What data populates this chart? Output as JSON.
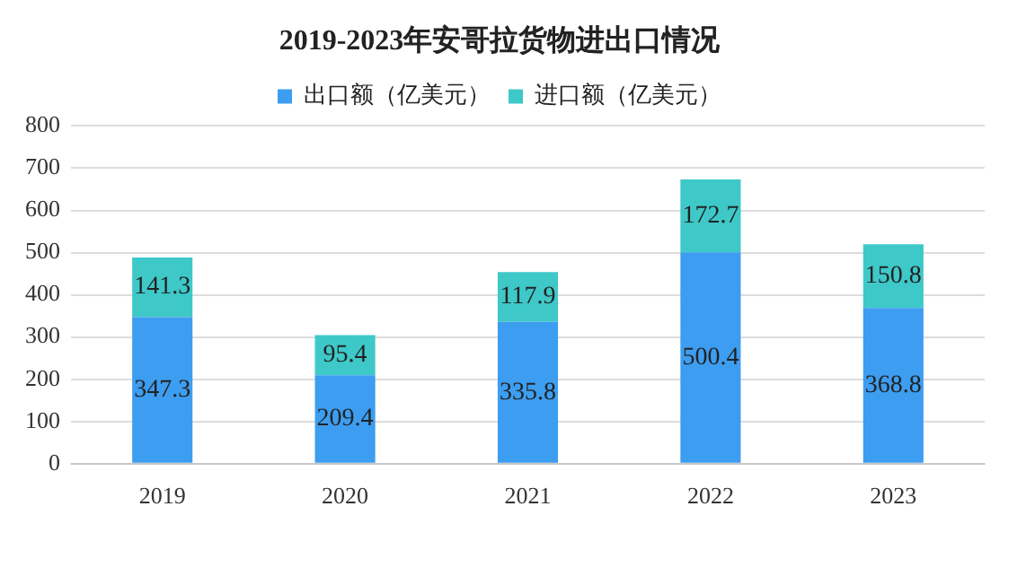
{
  "chart_data": {
    "type": "bar",
    "title": "2019-2023年安哥拉货物进出口情况",
    "categories": [
      "2019",
      "2020",
      "2021",
      "2022",
      "2023"
    ],
    "series": [
      {
        "name": "出口额（亿美元）",
        "color": "#3d9df0",
        "values": [
          347.3,
          209.4,
          335.8,
          500.4,
          368.8
        ]
      },
      {
        "name": "进口额（亿美元）",
        "color": "#3ec8c8",
        "values": [
          141.3,
          95.4,
          117.9,
          172.7,
          150.8
        ]
      }
    ],
    "stacked": true,
    "ylim": [
      0,
      800
    ],
    "yticks": [
      0,
      100,
      200,
      300,
      400,
      500,
      600,
      700,
      800
    ],
    "grid": "y",
    "legend": "top",
    "data_labels": true
  }
}
